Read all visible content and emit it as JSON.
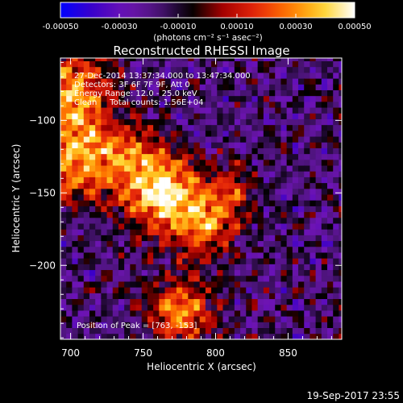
{
  "chart_data": {
    "type": "heatmap",
    "title": "Reconstructed RHESSI Image",
    "xlabel": "Heliocentric X (arcsec)",
    "ylabel": "Heliocentric Y (arcsec)",
    "xlim": [
      693,
      887
    ],
    "ylim": [
      -251,
      -57
    ],
    "xticks": [
      700,
      750,
      800,
      850
    ],
    "yticks": [
      -100,
      -150,
      -200
    ],
    "colorbar": {
      "min": -0.0005,
      "max": 0.0005,
      "tick_values": [
        -0.0005,
        -0.0003,
        -0.0001,
        0.0001,
        0.0003,
        0.0005
      ],
      "tick_labels": [
        "-0.00050",
        "-0.00030",
        "-0.00010",
        "0.00010",
        "0.00030",
        "0.00050"
      ],
      "unit_label": "(photons cm⁻² s⁻¹ asec⁻²)"
    },
    "info_lines": [
      "27-Dec-2014 13:37:34.000 to 13:47:34.000",
      "Detectors: 3F 6F 7F 9F, Att 0",
      "Energy Range: 12.0 - 25.0 keV",
      "Clean     Total counts: 1.56E+04"
    ],
    "peak_text": "Position of Peak = [763, -153]",
    "peak": [
      763,
      -153
    ],
    "sources": [
      {
        "x": 763,
        "y": -150,
        "amp": 1.0,
        "sigma": 18
      },
      {
        "x": 793,
        "y": -172,
        "amp": 0.62,
        "sigma": 16
      },
      {
        "x": 706,
        "y": -125,
        "amp": 0.85,
        "sigma": 20
      },
      {
        "x": 702,
        "y": -78,
        "amp": 0.78,
        "sigma": 18
      },
      {
        "x": 776,
        "y": -233,
        "amp": 0.7,
        "sigma": 16
      },
      {
        "x": 745,
        "y": -122,
        "amp": 0.4,
        "sigma": 14
      },
      {
        "x": 812,
        "y": -148,
        "amp": 0.4,
        "sigma": 13
      }
    ],
    "colors": {
      "background": "#000000",
      "foreground": "#ffffff",
      "colormap": [
        "#0000ff",
        "#3c00c8",
        "#6e14b4",
        "#4b1478",
        "#000000",
        "#aa0000",
        "#e6280a",
        "#ff7800",
        "#ffd228",
        "#ffffff"
      ]
    }
  },
  "footer": {
    "date": "19-Sep-2017 23:55"
  }
}
